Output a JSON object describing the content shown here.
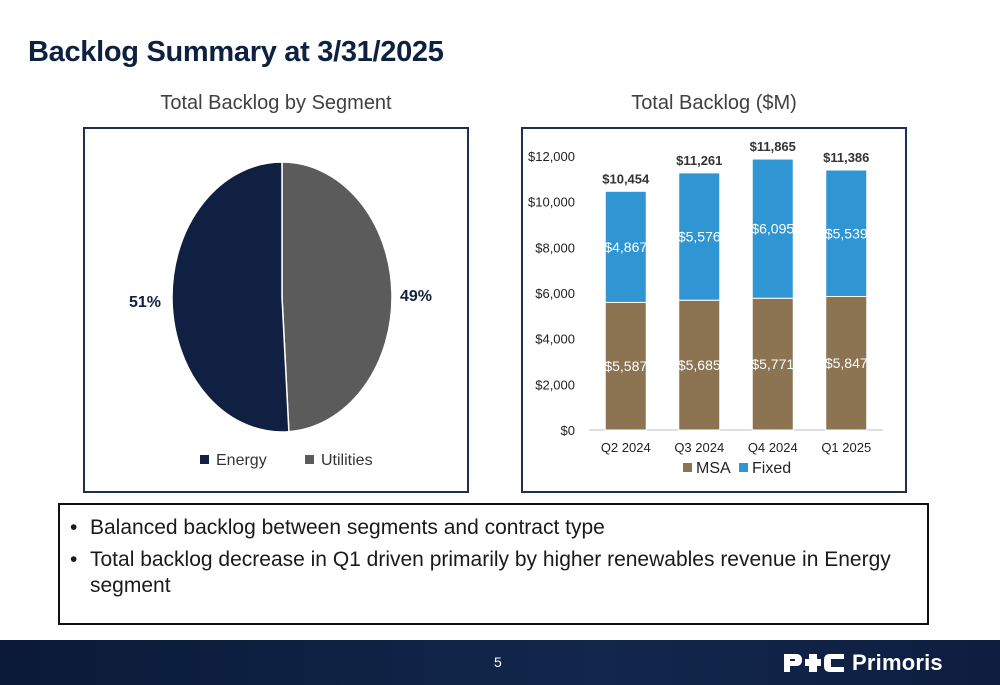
{
  "page": {
    "title": "Backlog Summary at 3/31/2025",
    "page_number": "5",
    "brand": "Primoris"
  },
  "colors": {
    "navy": "#0f2042",
    "pie_energy": "#0f2042",
    "pie_utilities": "#5b5b5b",
    "msa": "#8c7352",
    "fixed": "#2f96d3"
  },
  "chart_data": [
    {
      "type": "pie",
      "title": "Total Backlog by Segment",
      "labels": [
        "Energy",
        "Utilities"
      ],
      "values": [
        51,
        49
      ],
      "data_labels": [
        "51%",
        "49%"
      ],
      "legend": "bottom"
    },
    {
      "type": "bar",
      "stacked": true,
      "title": "Total Backlog ($M)",
      "categories": [
        "Q2 2024",
        "Q3 2024",
        "Q4 2024",
        "Q1 2025"
      ],
      "series": [
        {
          "name": "MSA",
          "values": [
            5587,
            5685,
            5771,
            5847
          ],
          "labels": [
            "$5,587",
            "$5,685",
            "$5,771",
            "$5,847"
          ]
        },
        {
          "name": "Fixed",
          "values": [
            4867,
            5576,
            6095,
            5539
          ],
          "labels": [
            "$4,867",
            "$5,576",
            "$6,095",
            "$5,539"
          ]
        }
      ],
      "totals": [
        10454,
        11261,
        11865,
        11386
      ],
      "total_labels": [
        "$10,454",
        "$11,261",
        "$11,865",
        "$11,386"
      ],
      "ylim": [
        0,
        12000
      ],
      "yticks": [
        0,
        2000,
        4000,
        6000,
        8000,
        10000,
        12000
      ],
      "ytick_labels": [
        "$0",
        "$2,000",
        "$4,000",
        "$6,000",
        "$8,000",
        "$10,000",
        "$12,000"
      ],
      "grid": false,
      "legend": "bottom"
    }
  ],
  "bullets": [
    "Balanced backlog between segments and contract type",
    "Total backlog decrease in Q1 driven primarily by higher renewables revenue in Energy segment"
  ]
}
